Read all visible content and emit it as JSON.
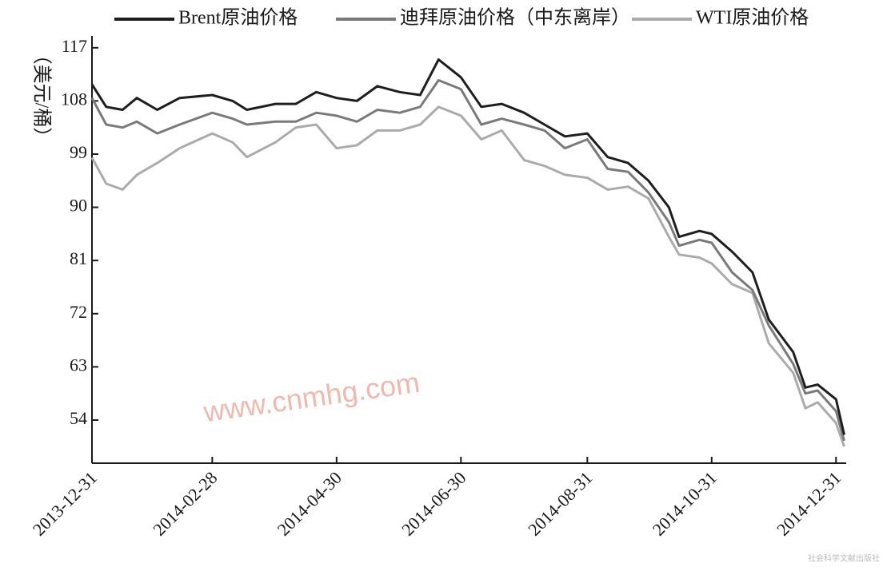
{
  "chart_data": {
    "type": "line",
    "y_label": "（美元/桶）",
    "annotations": [
      "www.cnmhg.com",
      "社会科学文献出版社"
    ],
    "x": [
      "2013-12-31",
      "2014-01-07",
      "2014-01-15",
      "2014-01-22",
      "2014-02-01",
      "2014-02-12",
      "2014-02-28",
      "2014-03-10",
      "2014-03-17",
      "2014-03-31",
      "2014-04-10",
      "2014-04-20",
      "2014-04-30",
      "2014-05-10",
      "2014-05-20",
      "2014-05-31",
      "2014-06-10",
      "2014-06-19",
      "2014-06-30",
      "2014-07-10",
      "2014-07-20",
      "2014-07-31",
      "2014-08-10",
      "2014-08-20",
      "2014-08-31",
      "2014-09-10",
      "2014-09-20",
      "2014-09-30",
      "2014-10-10",
      "2014-10-15",
      "2014-10-25",
      "2014-10-31",
      "2014-11-10",
      "2014-11-20",
      "2014-11-28",
      "2014-12-10",
      "2014-12-16",
      "2014-12-22",
      "2014-12-31",
      "2015-01-04"
    ],
    "series": [
      {
        "name": "Brent原油价格",
        "color": "#1e1e1e",
        "values": [
          110.8,
          107,
          106.5,
          108.5,
          106.5,
          108.5,
          109,
          108,
          106.5,
          107.5,
          107.5,
          109.5,
          108.5,
          108,
          110.5,
          109.5,
          109,
          115,
          112,
          107,
          107.5,
          106,
          104,
          102,
          102.5,
          98.5,
          97.5,
          94.5,
          90,
          85,
          86,
          85.5,
          82.5,
          79,
          71,
          65.5,
          59.5,
          60,
          57.5,
          51.5
        ]
      },
      {
        "name": "迪拜原油价格（中东离岸）",
        "color": "#7a7a7a",
        "values": [
          108.5,
          104,
          103.5,
          104.5,
          102.5,
          104,
          106,
          105,
          104,
          104.5,
          104.5,
          106,
          105.5,
          104.5,
          106.5,
          106,
          107,
          111.5,
          110,
          104,
          105,
          104,
          103,
          100,
          101.5,
          96.5,
          96,
          92.5,
          87.5,
          83.5,
          84.5,
          84,
          79,
          76,
          70,
          63.5,
          58.5,
          59,
          55.5,
          50.5
        ]
      },
      {
        "name": "WTI原油价格",
        "color": "#ababab",
        "values": [
          98.4,
          94,
          93,
          95.5,
          97.5,
          100,
          102.5,
          101,
          98.5,
          101,
          103.5,
          104,
          100,
          100.5,
          103,
          103,
          104,
          107,
          105.5,
          101.5,
          103,
          98,
          97,
          95.5,
          95,
          93,
          93.5,
          91.5,
          85,
          82,
          81.5,
          80.5,
          77,
          75.5,
          67,
          62,
          56,
          57,
          53.5,
          49.5
        ]
      }
    ],
    "xlim": [
      "2013-12-31",
      "2015-01-05"
    ],
    "xticks": [
      "2013-12-31",
      "2014-02-28",
      "2014-04-30",
      "2014-06-30",
      "2014-08-31",
      "2014-10-31",
      "2014-12-31"
    ],
    "ylim": [
      46.7,
      119
    ],
    "yticks": [
      54,
      63,
      72,
      81,
      90,
      99,
      108,
      117
    ]
  }
}
